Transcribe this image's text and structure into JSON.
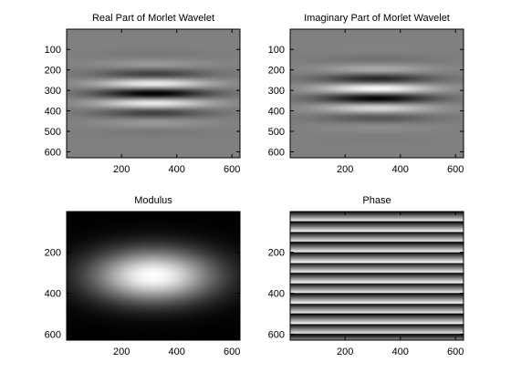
{
  "chart_data": [
    {
      "type": "heatmap",
      "title": "Real Part of Morlet Wavelet",
      "colormap": "gray",
      "x_ticks": [
        200,
        400,
        600
      ],
      "y_ticks": [
        100,
        200,
        300,
        400,
        500,
        600
      ],
      "xlim": [
        1,
        629
      ],
      "ylim": [
        1,
        629
      ],
      "pattern": {
        "component": "real",
        "center": [
          315,
          315
        ],
        "stripe_period": 100,
        "sigma_x": 200,
        "sigma_y": 115
      }
    },
    {
      "type": "heatmap",
      "title": "Imaginary Part of Morlet Wavelet",
      "colormap": "gray",
      "x_ticks": [
        200,
        400,
        600
      ],
      "y_ticks": [
        100,
        200,
        300,
        400,
        500,
        600
      ],
      "xlim": [
        1,
        629
      ],
      "ylim": [
        1,
        629
      ],
      "pattern": {
        "component": "imaginary",
        "center": [
          315,
          315
        ],
        "stripe_period": 100,
        "sigma_x": 200,
        "sigma_y": 115
      }
    },
    {
      "type": "heatmap",
      "title": "Modulus",
      "colormap": "gray",
      "x_ticks": [
        200,
        400,
        600
      ],
      "y_ticks": [
        200,
        400,
        600
      ],
      "xlim": [
        1,
        629
      ],
      "ylim": [
        1,
        629
      ],
      "pattern": {
        "component": "modulus",
        "center": [
          315,
          315
        ],
        "sigma_x": 200,
        "sigma_y": 115
      }
    },
    {
      "type": "heatmap",
      "title": "Phase",
      "colormap": "gray",
      "x_ticks": [
        200,
        400,
        600
      ],
      "y_ticks": [
        200,
        400,
        600
      ],
      "xlim": [
        1,
        629
      ],
      "ylim": [
        1,
        629
      ],
      "pattern": {
        "component": "phase",
        "stripe_period": 50
      }
    }
  ]
}
